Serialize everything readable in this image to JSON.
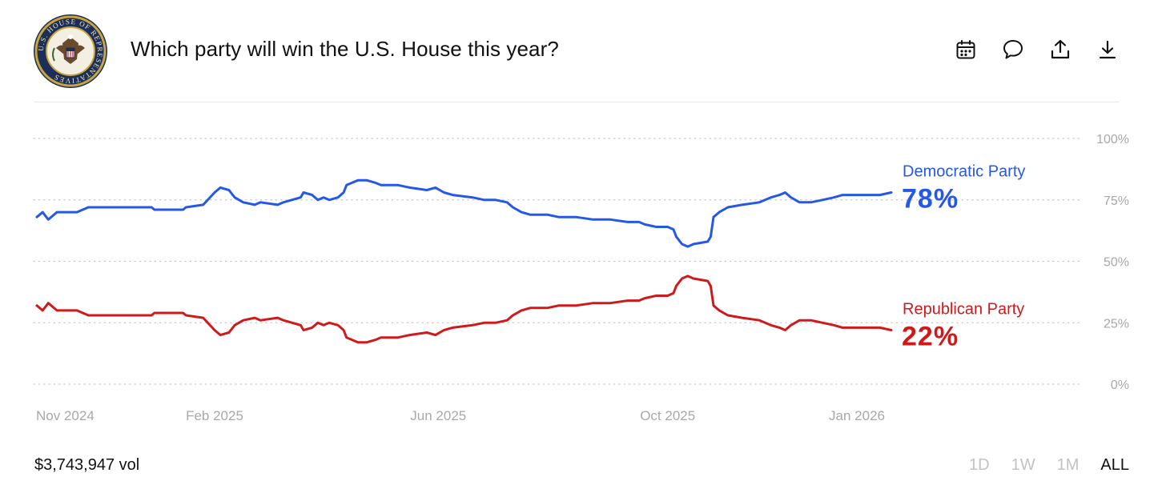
{
  "header": {
    "title": "Which party will win the U.S. House this year?"
  },
  "logo": {
    "seal_text": "U.S. HOUSE OF REPRESENTATIVES"
  },
  "toolbar": {
    "icons": [
      "calendar-icon",
      "comment-icon",
      "share-icon",
      "download-icon"
    ]
  },
  "footer": {
    "volume": "$3,743,947 vol",
    "ranges": [
      "1D",
      "1W",
      "1M",
      "ALL"
    ],
    "active_range": "ALL"
  },
  "colors": {
    "democratic": "#2558e8",
    "republican": "#d0191b",
    "grid": "#c8c8c8",
    "tick": "#a8a8a8"
  },
  "chart_data": {
    "type": "line",
    "title": "Which party will win the U.S. House this year?",
    "xlabel": "",
    "ylabel": "",
    "ylim": [
      0,
      100
    ],
    "y_ticks": [
      "100%",
      "75%",
      "50%",
      "25%",
      "0%"
    ],
    "x_ticks": [
      "Nov 2024",
      "Feb 2025",
      "Jun 2025",
      "Oct 2025",
      "Jan 2026"
    ],
    "x_tick_positions": [
      0.0,
      3.1,
      7.0,
      11.0,
      14.3
    ],
    "x_range": [
      0,
      14.9
    ],
    "grid": "horizontal dotted",
    "legend": "right",
    "series": [
      {
        "name": "Democratic Party",
        "current_label": "78%",
        "points": [
          [
            0,
            68
          ],
          [
            0.1,
            70
          ],
          [
            0.2,
            67
          ],
          [
            0.35,
            70
          ],
          [
            0.7,
            70
          ],
          [
            0.8,
            71
          ],
          [
            0.9,
            72
          ],
          [
            2.0,
            72
          ],
          [
            2.05,
            71
          ],
          [
            2.55,
            71
          ],
          [
            2.6,
            72
          ],
          [
            2.9,
            73
          ],
          [
            3.1,
            78
          ],
          [
            3.2,
            80
          ],
          [
            3.35,
            79
          ],
          [
            3.45,
            76
          ],
          [
            3.6,
            74
          ],
          [
            3.8,
            73
          ],
          [
            3.9,
            74
          ],
          [
            4.2,
            73
          ],
          [
            4.3,
            74
          ],
          [
            4.6,
            76
          ],
          [
            4.65,
            78
          ],
          [
            4.8,
            77
          ],
          [
            4.9,
            75
          ],
          [
            5.0,
            76
          ],
          [
            5.1,
            75
          ],
          [
            5.25,
            76
          ],
          [
            5.35,
            78
          ],
          [
            5.4,
            81
          ],
          [
            5.5,
            82
          ],
          [
            5.6,
            83
          ],
          [
            5.75,
            83
          ],
          [
            5.9,
            82
          ],
          [
            6.0,
            81
          ],
          [
            6.3,
            81
          ],
          [
            6.5,
            80
          ],
          [
            6.8,
            79
          ],
          [
            6.95,
            80
          ],
          [
            7.1,
            78
          ],
          [
            7.25,
            77
          ],
          [
            7.6,
            76
          ],
          [
            7.8,
            75
          ],
          [
            8.0,
            75
          ],
          [
            8.2,
            74
          ],
          [
            8.3,
            72
          ],
          [
            8.45,
            70
          ],
          [
            8.6,
            69
          ],
          [
            8.9,
            69
          ],
          [
            9.1,
            68
          ],
          [
            9.4,
            68
          ],
          [
            9.7,
            67
          ],
          [
            10.0,
            67
          ],
          [
            10.3,
            66
          ],
          [
            10.5,
            66
          ],
          [
            10.6,
            65
          ],
          [
            10.8,
            64
          ],
          [
            11.0,
            64
          ],
          [
            11.1,
            63
          ],
          [
            11.15,
            60
          ],
          [
            11.25,
            57
          ],
          [
            11.35,
            56
          ],
          [
            11.45,
            57
          ],
          [
            11.7,
            58
          ],
          [
            11.75,
            60
          ],
          [
            11.8,
            68
          ],
          [
            11.9,
            70
          ],
          [
            12.05,
            72
          ],
          [
            12.3,
            73
          ],
          [
            12.6,
            74
          ],
          [
            12.8,
            76
          ],
          [
            12.95,
            77
          ],
          [
            13.05,
            78
          ],
          [
            13.15,
            76
          ],
          [
            13.3,
            74
          ],
          [
            13.5,
            74
          ],
          [
            13.7,
            75
          ],
          [
            13.9,
            76
          ],
          [
            14.05,
            77
          ],
          [
            14.2,
            77
          ],
          [
            14.5,
            77
          ],
          [
            14.7,
            77
          ],
          [
            14.9,
            78
          ]
        ]
      },
      {
        "name": "Republican Party",
        "current_label": "22%",
        "points": [
          [
            0,
            32
          ],
          [
            0.1,
            30
          ],
          [
            0.2,
            33
          ],
          [
            0.35,
            30
          ],
          [
            0.7,
            30
          ],
          [
            0.8,
            29
          ],
          [
            0.9,
            28
          ],
          [
            2.0,
            28
          ],
          [
            2.05,
            29
          ],
          [
            2.55,
            29
          ],
          [
            2.6,
            28
          ],
          [
            2.9,
            27
          ],
          [
            3.1,
            22
          ],
          [
            3.2,
            20
          ],
          [
            3.35,
            21
          ],
          [
            3.45,
            24
          ],
          [
            3.6,
            26
          ],
          [
            3.8,
            27
          ],
          [
            3.9,
            26
          ],
          [
            4.2,
            27
          ],
          [
            4.3,
            26
          ],
          [
            4.6,
            24
          ],
          [
            4.65,
            22
          ],
          [
            4.8,
            23
          ],
          [
            4.9,
            25
          ],
          [
            5.0,
            24
          ],
          [
            5.1,
            25
          ],
          [
            5.25,
            24
          ],
          [
            5.35,
            22
          ],
          [
            5.4,
            19
          ],
          [
            5.5,
            18
          ],
          [
            5.6,
            17
          ],
          [
            5.75,
            17
          ],
          [
            5.9,
            18
          ],
          [
            6.0,
            19
          ],
          [
            6.3,
            19
          ],
          [
            6.5,
            20
          ],
          [
            6.8,
            21
          ],
          [
            6.95,
            20
          ],
          [
            7.1,
            22
          ],
          [
            7.25,
            23
          ],
          [
            7.6,
            24
          ],
          [
            7.8,
            25
          ],
          [
            8.0,
            25
          ],
          [
            8.2,
            26
          ],
          [
            8.3,
            28
          ],
          [
            8.45,
            30
          ],
          [
            8.6,
            31
          ],
          [
            8.9,
            31
          ],
          [
            9.1,
            32
          ],
          [
            9.4,
            32
          ],
          [
            9.7,
            33
          ],
          [
            10.0,
            33
          ],
          [
            10.3,
            34
          ],
          [
            10.5,
            34
          ],
          [
            10.6,
            35
          ],
          [
            10.8,
            36
          ],
          [
            11.0,
            36
          ],
          [
            11.1,
            37
          ],
          [
            11.15,
            40
          ],
          [
            11.25,
            43
          ],
          [
            11.35,
            44
          ],
          [
            11.45,
            43
          ],
          [
            11.7,
            42
          ],
          [
            11.75,
            40
          ],
          [
            11.8,
            32
          ],
          [
            11.9,
            30
          ],
          [
            12.05,
            28
          ],
          [
            12.3,
            27
          ],
          [
            12.6,
            26
          ],
          [
            12.8,
            24
          ],
          [
            12.95,
            23
          ],
          [
            13.05,
            22
          ],
          [
            13.15,
            24
          ],
          [
            13.3,
            26
          ],
          [
            13.5,
            26
          ],
          [
            13.7,
            25
          ],
          [
            13.9,
            24
          ],
          [
            14.05,
            23
          ],
          [
            14.2,
            23
          ],
          [
            14.5,
            23
          ],
          [
            14.7,
            23
          ],
          [
            14.9,
            22
          ]
        ]
      }
    ]
  }
}
